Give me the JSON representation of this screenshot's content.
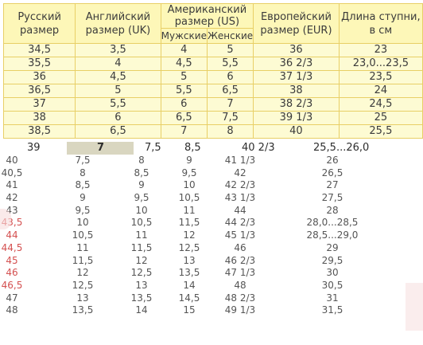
{
  "header": {
    "ru": "Русский размер",
    "uk": "Английский размер (UK)",
    "us": "Американский размер (US)",
    "us_men": "Мужские",
    "us_women": "Женские",
    "eur": "Европейский размер (EUR)",
    "foot": "Длина ступни, в см"
  },
  "rows": [
    [
      "34,5",
      "3,5",
      "4",
      "5",
      "36",
      "23"
    ],
    [
      "35,5",
      "4",
      "4,5",
      "5,5",
      "36 2/3",
      "23,0...23,5"
    ],
    [
      "36",
      "4,5",
      "5",
      "6",
      "37 1/3",
      "23,5"
    ],
    [
      "36,5",
      "5",
      "5,5",
      "6,5",
      "38",
      "24"
    ],
    [
      "37",
      "5,5",
      "6",
      "7",
      "38 2/3",
      "24,5"
    ],
    [
      "38",
      "6",
      "6,5",
      "7,5",
      "39 1/3",
      "25"
    ],
    [
      "38,5",
      "6,5",
      "7",
      "8",
      "40",
      "25,5"
    ]
  ],
  "row39": [
    "39",
    "7",
    "7,5",
    "8,5",
    "40 2/3",
    "25,5...26,0"
  ],
  "lower": [
    [
      "40",
      "7,5",
      "8",
      "9",
      "41 1/3",
      "26"
    ],
    [
      "40,5",
      "8",
      "8,5",
      "9,5",
      "42",
      "26,5"
    ],
    [
      "41",
      "8,5",
      "9",
      "10",
      "42 2/3",
      "27"
    ],
    [
      "42",
      "9",
      "9,5",
      "10,5",
      "43 1/3",
      "27,5"
    ],
    [
      "43",
      "9,5",
      "10",
      "11",
      "44",
      "28"
    ],
    [
      "43,5",
      "10",
      "10,5",
      "11,5",
      "44 2/3",
      "28,0...28,5"
    ],
    [
      "44",
      "10,5",
      "11",
      "12",
      "45 1/3",
      "28,5...29,0"
    ],
    [
      "44,5",
      "11",
      "11,5",
      "12,5",
      "46",
      "29"
    ],
    [
      "45",
      "11,5",
      "12",
      "13",
      "46 2/3",
      "29,5"
    ],
    [
      "46",
      "12",
      "12,5",
      "13,5",
      "47 1/3",
      "30"
    ],
    [
      "46,5",
      "12,5",
      "13",
      "14",
      "48",
      "30,5"
    ],
    [
      "47",
      "13",
      "13,5",
      "14,5",
      "48 2/3",
      "31"
    ],
    [
      "48",
      "13,5",
      "14",
      "15",
      "49 1/3",
      "31,5"
    ]
  ],
  "red_rows": [
    5,
    6,
    7,
    8,
    9,
    10
  ]
}
